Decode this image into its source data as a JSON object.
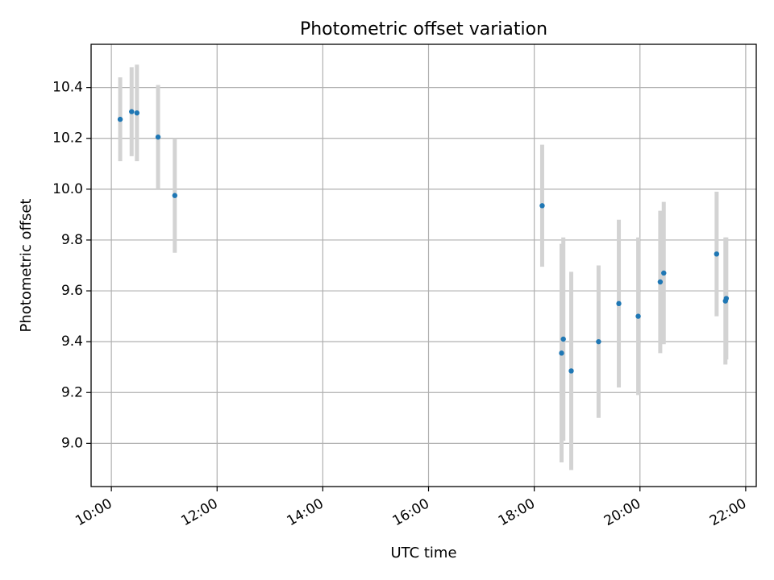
{
  "chart_data": {
    "type": "scatter",
    "title": "Photometric offset variation",
    "xlabel": "UTC time",
    "ylabel": "Photometric offset",
    "xlim": [
      "09:37",
      "22:12"
    ],
    "ylim": [
      8.83,
      10.57
    ],
    "x_ticks": [
      "10:00",
      "12:00",
      "14:00",
      "16:00",
      "18:00",
      "20:00",
      "22:00"
    ],
    "y_ticks": [
      "9.0",
      "9.2",
      "9.4",
      "9.6",
      "9.8",
      "10.0",
      "10.2",
      "10.4"
    ],
    "grid": true,
    "colors": {
      "point": "#1f77b4",
      "errorbar": "#d3d3d3"
    },
    "points": [
      {
        "x": "10:10",
        "y": 10.275,
        "yerr": 0.165
      },
      {
        "x": "10:23",
        "y": 10.305,
        "yerr": 0.175
      },
      {
        "x": "10:29",
        "y": 10.3,
        "yerr": 0.19
      },
      {
        "x": "10:53",
        "y": 10.205,
        "yerr": 0.205
      },
      {
        "x": "11:12",
        "y": 9.975,
        "yerr": 0.225
      },
      {
        "x": "18:09",
        "y": 9.935,
        "yerr": 0.24
      },
      {
        "x": "18:31",
        "y": 9.355,
        "yerr": 0.43
      },
      {
        "x": "18:33",
        "y": 9.41,
        "yerr": 0.4
      },
      {
        "x": "18:42",
        "y": 9.285,
        "yerr": 0.39
      },
      {
        "x": "19:13",
        "y": 9.4,
        "yerr": 0.3
      },
      {
        "x": "19:36",
        "y": 9.55,
        "yerr": 0.33
      },
      {
        "x": "19:58",
        "y": 9.5,
        "yerr": 0.31
      },
      {
        "x": "20:23",
        "y": 9.635,
        "yerr": 0.28
      },
      {
        "x": "20:27",
        "y": 9.67,
        "yerr": 0.28
      },
      {
        "x": "21:27",
        "y": 9.745,
        "yerr": 0.245
      },
      {
        "x": "21:37",
        "y": 9.56,
        "yerr": 0.25
      },
      {
        "x": "21:38",
        "y": 9.57,
        "yerr": 0.24
      }
    ]
  }
}
